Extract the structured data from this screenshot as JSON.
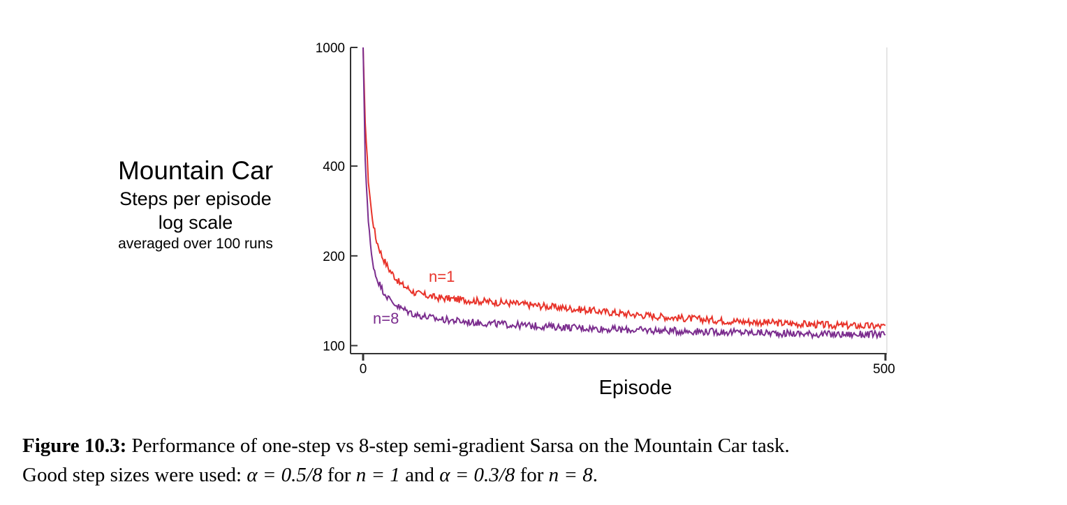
{
  "chart_data": {
    "type": "line",
    "title": "Mountain Car",
    "ylabel_lines": [
      "Steps per episode",
      "log scale",
      "averaged over 100 runs"
    ],
    "xlabel": "Episode",
    "y_scale": "log",
    "xlim": [
      0,
      500
    ],
    "ylim": [
      94,
      1000
    ],
    "x_ticks": [
      0,
      500
    ],
    "y_ticks": [
      100,
      200,
      400,
      1000
    ],
    "grid": false,
    "series": [
      {
        "name": "n=1",
        "color": "#e8332a",
        "x": [
          0,
          2,
          5,
          8,
          12,
          18,
          25,
          35,
          50,
          70,
          100,
          150,
          200,
          250,
          300,
          350,
          400,
          450,
          500
        ],
        "y": [
          1000,
          560,
          360,
          280,
          230,
          200,
          180,
          162,
          150,
          145,
          142,
          138,
          133,
          128,
          124,
          121,
          119,
          117,
          116
        ]
      },
      {
        "name": "n=8",
        "color": "#7b2d8e",
        "x": [
          0,
          2,
          5,
          8,
          12,
          18,
          25,
          35,
          50,
          70,
          100,
          150,
          200,
          250,
          300,
          350,
          400,
          450,
          500
        ],
        "y": [
          1000,
          420,
          260,
          200,
          172,
          155,
          143,
          134,
          127,
          123,
          120,
          117,
          115,
          113,
          112,
          111,
          110,
          109,
          109
        ]
      }
    ]
  },
  "caption": {
    "label": "Figure 10.3:",
    "line1_text": " Performance of one-step vs 8-step semi-gradient Sarsa on the Mountain Car task.",
    "line2_pre": "Good step sizes were used: ",
    "alpha1": "α = 0.5/8",
    "for1": " for ",
    "n1": "n = 1",
    "and": " and ",
    "alpha2": "α = 0.3/8",
    "for2": " for ",
    "n2": "n = 8",
    "end": "."
  }
}
